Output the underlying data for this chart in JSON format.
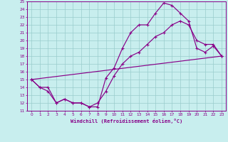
{
  "xlabel": "Windchill (Refroidissement éolien,°C)",
  "xlim": [
    -0.5,
    23.5
  ],
  "ylim": [
    11,
    25
  ],
  "xticks": [
    0,
    1,
    2,
    3,
    4,
    5,
    6,
    7,
    8,
    9,
    10,
    11,
    12,
    13,
    14,
    15,
    16,
    17,
    18,
    19,
    20,
    21,
    22,
    23
  ],
  "yticks": [
    11,
    12,
    13,
    14,
    15,
    16,
    17,
    18,
    19,
    20,
    21,
    22,
    23,
    24,
    25
  ],
  "line_color": "#880088",
  "bg_color": "#c8eeee",
  "grid_color": "#99cccc",
  "line1_x": [
    0,
    1,
    2,
    3,
    4,
    5,
    6,
    7,
    8,
    9,
    10,
    11,
    12,
    13,
    14,
    15,
    16,
    17,
    18,
    19,
    20,
    21,
    22,
    23
  ],
  "line1_y": [
    15.0,
    14.0,
    14.0,
    12.0,
    12.5,
    12.0,
    12.0,
    11.5,
    11.5,
    15.2,
    16.5,
    19.0,
    21.0,
    22.0,
    22.0,
    23.5,
    24.8,
    24.5,
    23.5,
    22.5,
    19.0,
    18.5,
    19.3,
    18.0
  ],
  "line2_x": [
    0,
    1,
    2,
    3,
    4,
    5,
    6,
    7,
    8,
    9,
    10,
    11,
    12,
    13,
    14,
    15,
    16,
    17,
    18,
    19,
    20,
    21,
    22,
    23
  ],
  "line2_y": [
    15.0,
    14.0,
    13.5,
    12.0,
    12.5,
    12.0,
    12.0,
    11.5,
    12.0,
    13.5,
    15.5,
    17.0,
    18.0,
    18.5,
    19.5,
    20.5,
    21.0,
    22.0,
    22.5,
    22.0,
    20.0,
    19.5,
    19.5,
    18.0
  ],
  "line3_x": [
    0,
    23
  ],
  "line3_y": [
    15.0,
    18.0
  ]
}
